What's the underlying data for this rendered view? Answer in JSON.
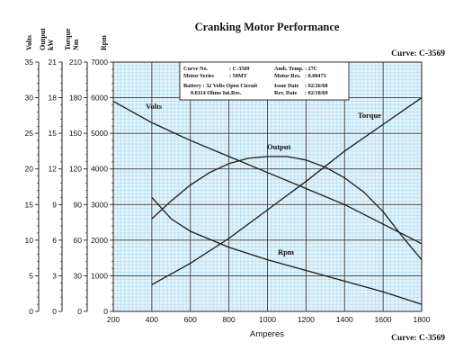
{
  "chart_data": {
    "type": "line",
    "title": "Cranking Motor Performance",
    "curve_label_top": "Curve: C-3569",
    "curve_label_bottom": "Curve: C-3569",
    "xlabel": "Amperes",
    "xlim": [
      200,
      1800
    ],
    "x_ticks": [
      200,
      400,
      600,
      800,
      1000,
      1200,
      1400,
      1600,
      1800
    ],
    "axes": [
      {
        "key": "volts",
        "label": "Volts",
        "range": [
          0,
          35
        ],
        "ticks": [
          0,
          5,
          10,
          15,
          20,
          25,
          30,
          35
        ]
      },
      {
        "key": "output",
        "label": "Output\nkW",
        "range": [
          0,
          21
        ],
        "ticks": [
          0,
          3,
          6,
          9,
          12,
          15,
          18,
          21
        ]
      },
      {
        "key": "torque",
        "label": "Torque\nNm",
        "range": [
          0,
          210
        ],
        "ticks": [
          0,
          30,
          60,
          90,
          120,
          150,
          180,
          210
        ]
      },
      {
        "key": "rpm",
        "label": "Rpm",
        "range": [
          0,
          7000
        ],
        "ticks": [
          0,
          1000,
          2000,
          3000,
          4000,
          5000,
          6000,
          7000
        ]
      }
    ],
    "grid": true,
    "series": [
      {
        "name": "Volts",
        "axis": "rpm",
        "x": [
          200,
          400,
          600,
          800,
          1000,
          1200,
          1400,
          1600,
          1800
        ],
        "values": [
          5900,
          5300,
          4800,
          4350,
          3900,
          3450,
          3000,
          2450,
          1900
        ]
      },
      {
        "name": "Torque",
        "axis": "rpm",
        "x": [
          400,
          600,
          800,
          1000,
          1200,
          1400,
          1600,
          1800
        ],
        "values": [
          750,
          1350,
          2050,
          2850,
          3650,
          4500,
          5250,
          6000
        ]
      },
      {
        "name": "Output",
        "axis": "rpm",
        "x": [
          400,
          500,
          600,
          700,
          800,
          900,
          1000,
          1100,
          1200,
          1300,
          1400,
          1500,
          1600,
          1700,
          1800
        ],
        "values": [
          2600,
          3100,
          3550,
          3900,
          4150,
          4300,
          4350,
          4350,
          4250,
          4050,
          3750,
          3350,
          2800,
          2100,
          1450
        ]
      },
      {
        "name": "Rpm",
        "axis": "rpm",
        "x": [
          400,
          500,
          600,
          800,
          1000,
          1200,
          1400,
          1600,
          1800
        ],
        "values": [
          3200,
          2600,
          2250,
          1800,
          1450,
          1150,
          850,
          550,
          200
        ]
      }
    ],
    "info_box": {
      "rows": [
        [
          "Curve No.",
          ": C-3569",
          "Amb. Temp.",
          ": 27C"
        ],
        [
          "Motor Series",
          ": 50MT",
          "Motor Res.",
          ": 0.00473"
        ],
        [
          "Battery : 32 Volts Open Circuit",
          "",
          "Issue Date",
          ": 02/26/68"
        ],
        [
          "0.0114 Ohms Int.Res.",
          "",
          "Rev. Date",
          ": 02/18/69"
        ]
      ]
    }
  }
}
